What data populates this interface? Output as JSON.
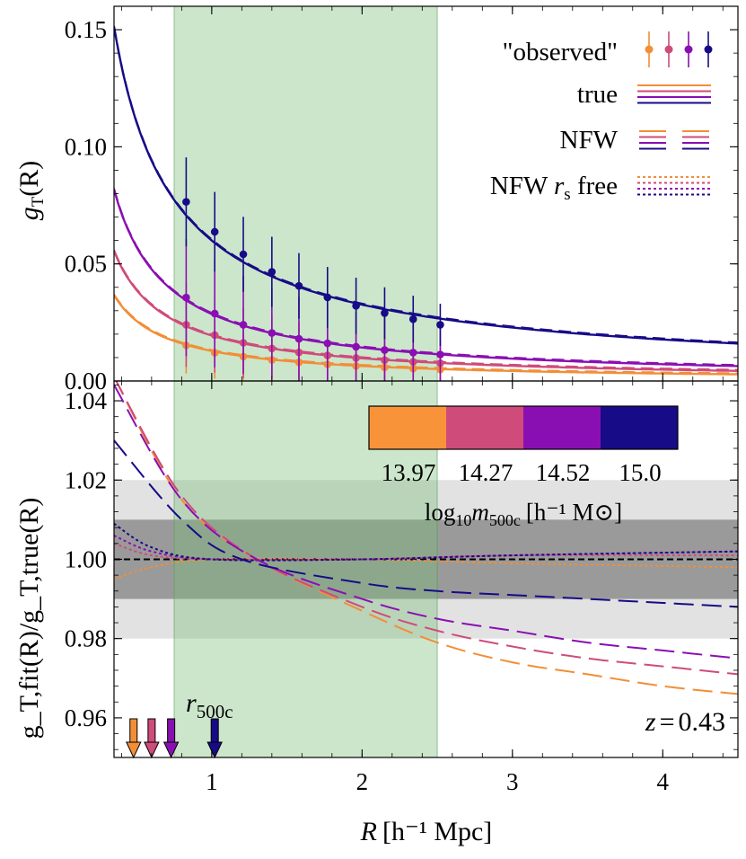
{
  "chart_data": [
    {
      "type": "line",
      "panel": "top",
      "ylabel": {
        "main": "g",
        "sub": "T",
        "arg": "(R)"
      },
      "xlim": [
        0.35,
        4.5
      ],
      "ylim": [
        0.0,
        0.16
      ],
      "yticks": [
        "0.00",
        "0.05",
        "0.10",
        "0.15"
      ],
      "yticks_values": [
        0.0,
        0.05,
        0.1,
        0.15
      ],
      "fit_range": [
        0.75,
        2.5
      ],
      "series": [
        {
          "name": "13.97",
          "color": "#f28e37",
          "curve_amplitude": 0.0128,
          "curve_exponent": 1.0,
          "observed_R": [
            0.83,
            1.02,
            1.21,
            1.4,
            1.58,
            1.77,
            1.96,
            2.15,
            2.34,
            2.52
          ],
          "observed_g": [
            0.0152,
            0.012,
            0.0104,
            0.009,
            0.008,
            0.0071,
            0.0064,
            0.0058,
            0.0053,
            0.0049
          ],
          "error": [
            0.012,
            0.011,
            0.01,
            0.009,
            0.008,
            0.007,
            0.007,
            0.006,
            0.006,
            0.005
          ]
        },
        {
          "name": "14.27",
          "color": "#cf4b7a",
          "curve_amplitude": 0.0194,
          "curve_exponent": 1.0,
          "observed_R": [
            0.83,
            1.02,
            1.21,
            1.4,
            1.58,
            1.77,
            1.96,
            2.15,
            2.34,
            2.52
          ],
          "observed_g": [
            0.024,
            0.0196,
            0.0163,
            0.0139,
            0.0122,
            0.0109,
            0.0098,
            0.0089,
            0.0082,
            0.0076
          ],
          "error": [
            0.018,
            0.016,
            0.015,
            0.014,
            0.013,
            0.012,
            0.011,
            0.01,
            0.009,
            0.009
          ]
        },
        {
          "name": "14.52",
          "color": "#8a0fb2",
          "curve_amplitude": 0.0286,
          "curve_exponent": 1.0,
          "observed_R": [
            0.83,
            1.02,
            1.21,
            1.4,
            1.58,
            1.77,
            1.96,
            2.15,
            2.34,
            2.52
          ],
          "observed_g": [
            0.0356,
            0.0288,
            0.024,
            0.0205,
            0.018,
            0.0161,
            0.0146,
            0.0132,
            0.0121,
            0.0113
          ],
          "error": [
            0.025,
            0.023,
            0.021,
            0.019,
            0.018,
            0.017,
            0.015,
            0.014,
            0.013,
            0.012
          ]
        },
        {
          "name": "15.0",
          "color": "#170b87",
          "curve_amplitude": 0.06,
          "curve_exponent": 0.88,
          "observed_R": [
            0.83,
            1.02,
            1.21,
            1.4,
            1.58,
            1.77,
            1.96,
            2.15,
            2.34,
            2.52
          ],
          "observed_g": [
            0.0765,
            0.0637,
            0.0541,
            0.0466,
            0.0406,
            0.0357,
            0.0321,
            0.029,
            0.0264,
            0.024
          ],
          "error": [
            0.019,
            0.017,
            0.016,
            0.015,
            0.014,
            0.013,
            0.012,
            0.011,
            0.01,
            0.009
          ]
        }
      ],
      "legend": [
        {
          "label": "\"observed\"",
          "style": "points"
        },
        {
          "label": "true",
          "style": "solid"
        },
        {
          "label": "NFW",
          "style": "dashed"
        },
        {
          "label": "NFW r_s free",
          "label_parts": [
            "NFW ",
            "r",
            "s",
            " free"
          ],
          "style": "dotted"
        }
      ],
      "legend_position": "top-right"
    },
    {
      "type": "line",
      "panel": "bottom",
      "xlabel": {
        "main": "R",
        "unit": "[h⁻¹ Mpc]"
      },
      "ylabel": {
        "text": "g_T,fit(R)/g_T,true(R)"
      },
      "xlim": [
        0.35,
        4.5
      ],
      "ylim": [
        0.95,
        1.045
      ],
      "xticks": [
        "1",
        "2",
        "3",
        "4"
      ],
      "xticks_values": [
        1,
        2,
        3,
        4
      ],
      "yticks": [
        "0.96",
        "0.98",
        "1.00",
        "1.02",
        "1.04"
      ],
      "yticks_values": [
        0.96,
        0.98,
        1.0,
        1.02,
        1.04
      ],
      "fit_range": [
        0.75,
        2.5
      ],
      "band_inner": [
        0.99,
        1.01
      ],
      "band_outer": [
        0.98,
        1.02
      ],
      "reference": 1.0,
      "series": [
        {
          "name": "13.97",
          "color": "#f28e37",
          "nfw_ratio": {
            "R": [
              0.35,
              0.8,
              1.3,
              2.0,
              2.5,
              3.0,
              3.5,
              4.0,
              4.5
            ],
            "values": [
              1.046,
              1.015,
              1.0,
              0.987,
              0.979,
              0.974,
              0.971,
              0.968,
              0.966
            ]
          },
          "rs_free_ratio": {
            "R": [
              0.35,
              0.6,
              1.0,
              2.0,
              3.0,
              4.5
            ],
            "values": [
              0.995,
              0.998,
              1.0,
              1.0,
              0.999,
              0.998
            ]
          },
          "r500c": 0.48
        },
        {
          "name": "14.27",
          "color": "#cf4b7a",
          "nfw_ratio": {
            "R": [
              0.35,
              0.8,
              1.3,
              2.0,
              2.5,
              3.0,
              3.5,
              4.0,
              4.5
            ],
            "values": [
              1.046,
              1.016,
              1.0,
              0.988,
              0.982,
              0.978,
              0.975,
              0.973,
              0.971
            ]
          },
          "rs_free_ratio": {
            "R": [
              0.35,
              0.6,
              1.0,
              2.0,
              3.0,
              4.5
            ],
            "values": [
              1.004,
              1.001,
              1.0,
              1.0,
              1.001,
              1.001
            ]
          },
          "r500c": 0.6
        },
        {
          "name": "14.52",
          "color": "#8a0fb2",
          "nfw_ratio": {
            "R": [
              0.35,
              0.8,
              1.3,
              2.0,
              2.5,
              3.0,
              3.5,
              4.0,
              4.5
            ],
            "values": [
              1.044,
              1.015,
              1.0,
              0.99,
              0.985,
              0.982,
              0.979,
              0.977,
              0.975
            ]
          },
          "rs_free_ratio": {
            "R": [
              0.35,
              0.6,
              1.0,
              2.0,
              3.0,
              4.5
            ],
            "values": [
              1.006,
              1.002,
              1.0,
              1.0,
              1.001,
              1.002
            ]
          },
          "r500c": 0.73
        },
        {
          "name": "15.0",
          "color": "#170b87",
          "nfw_ratio": {
            "R": [
              0.35,
              0.8,
              1.2,
              2.0,
              2.5,
              3.0,
              3.5,
              4.0,
              4.5
            ],
            "values": [
              1.03,
              1.01,
              1.0,
              0.994,
              0.992,
              0.991,
              0.99,
              0.989,
              0.988
            ]
          },
          "rs_free_ratio": {
            "R": [
              0.35,
              0.6,
              1.0,
              2.0,
              3.0,
              4.5
            ],
            "values": [
              1.009,
              1.003,
              1.0,
              1.0,
              1.001,
              1.002
            ]
          },
          "r500c": 1.02
        }
      ],
      "r500c_label": {
        "main": "r",
        "sub": "500c"
      },
      "annotation": {
        "text": "z = 0.43",
        "var": "z",
        "eq": "=",
        "value": "0.43"
      },
      "colorbar": {
        "values": [
          "13.97",
          "14.27",
          "14.52",
          "15.0"
        ],
        "colors": [
          "#f8933a",
          "#cf4b7a",
          "#8a0fb2",
          "#170b87"
        ],
        "label": "log10 m500c [h⁻¹ M⊙]",
        "label_parts": {
          "log": "log",
          "log_sub": "10",
          "m": "m",
          "m_sub": "500c",
          "unit": "[h⁻¹ M⊙]"
        },
        "position": "top-right"
      }
    }
  ]
}
